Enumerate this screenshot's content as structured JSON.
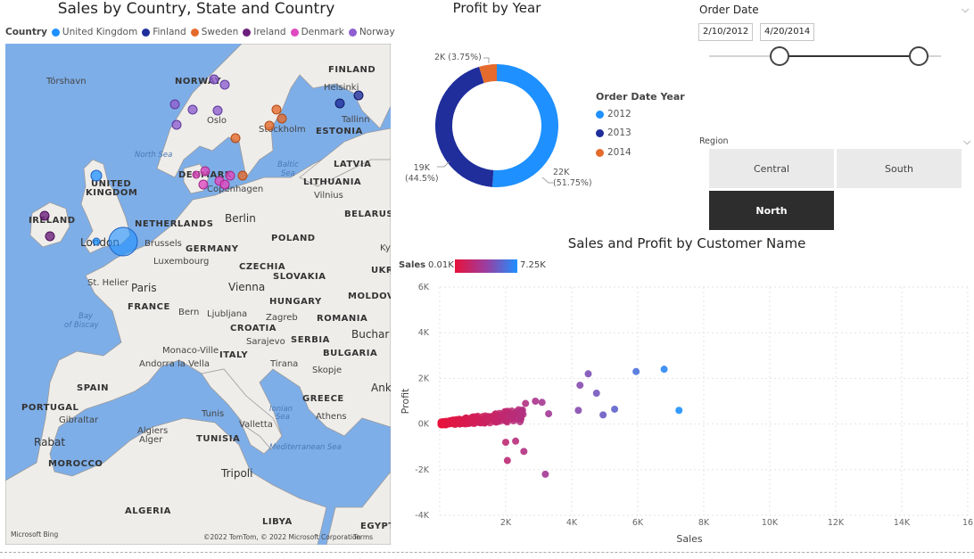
{
  "map": {
    "title": "Sales by Country, State and Country",
    "legend_label": "Country",
    "legend": [
      {
        "name": "United Kingdom",
        "color": "#1e90ff"
      },
      {
        "name": "Finland",
        "color": "#1f2e9b"
      },
      {
        "name": "Sweden",
        "color": "#e56b2c"
      },
      {
        "name": "Ireland",
        "color": "#6b1f7c"
      },
      {
        "name": "Denmark",
        "color": "#e04ac0"
      },
      {
        "name": "Norway",
        "color": "#8e5fd0"
      }
    ],
    "labels": {
      "torshavn": "Tórshavn",
      "norway": "NORWAY",
      "finland": "FINLAND",
      "helsinki": "Helsinki",
      "oslo": "Oslo",
      "tallinn": "Tallinn",
      "stockholm": "Stockholm",
      "estonia": "ESTONIA",
      "north_sea": "North Sea",
      "latvia": "LATVIA",
      "denmark": "DENMARK",
      "baltic_sea_1": "Baltic",
      "baltic_sea_2": "Sea",
      "uk_1": "UNITED",
      "uk_2": "KINGDOM",
      "lithuania": "LITHUANIA",
      "copenhagen": "Copenhagen",
      "vilnius": "Vilnius",
      "ireland": "IRELAND",
      "netherlands": "NETHERLANDS",
      "berlin": "Berlin",
      "belarus": "BELARUS",
      "london": "London",
      "brussels": "Brussels",
      "germany": "GERMANY",
      "poland": "POLAND",
      "luxembourg": "Luxembourg",
      "ky": "Ky",
      "czechia": "CZECHIA",
      "ukr": "UKR",
      "st_helier": "St. Helier",
      "paris": "Paris",
      "slovakia": "SLOVAKIA",
      "vienna": "Vienna",
      "moldova": "MOLDOVA",
      "bay_1": "Bay",
      "bay_2": "of Biscay",
      "france": "FRANCE",
      "bern": "Bern",
      "ljubljana": "Ljubljana",
      "hungary": "HUNGARY",
      "zagreb": "Zagreb",
      "romania": "ROMANIA",
      "croatia": "CROATIA",
      "buchar": "Buchar",
      "sarajevo": "Sarajevo",
      "serbia": "SERBIA",
      "monaco": "Monaco-Ville",
      "italy": "ITALY",
      "andorra": "Andorra la Vella",
      "tirana": "Tirana",
      "bulgaria": "BULGARIA",
      "skopje": "Skopje",
      "spain": "SPAIN",
      "ank": "Ank",
      "greece": "GREECE",
      "portugal": "PORTUGAL",
      "ionian_1": "Ionian",
      "ionian_2": "Sea",
      "tunis": "Tunis",
      "gibraltar": "Gibraltar",
      "valletta": "Valletta",
      "athens": "Athens",
      "rabat": "Rabat",
      "algiers_1": "Algiers",
      "algiers_2": "Alger",
      "tunisia": "TUNISIA",
      "morocco": "MOROCCO",
      "med_sea": "Mediterranean Sea",
      "tripoli": "Tripoli",
      "algeria": "ALGERIA",
      "libya": "LIBYA",
      "egypt": "EGYPT"
    },
    "credits": "©2022 TomTom, © 2022 Microsoft Corporation",
    "terms": "Terms",
    "bing": "Microsoft Bing"
  },
  "donut": {
    "title": "Profit by Year",
    "legend_title": "Order Date Year",
    "slices": [
      {
        "year": "2012",
        "value": 22000,
        "label_value": "22K",
        "label_pct": "(51.75%)",
        "color": "#1e90ff"
      },
      {
        "year": "2013",
        "value": 19000,
        "label_value": "19K",
        "label_pct": "(44.5%)",
        "color": "#1f2e9b"
      },
      {
        "year": "2014",
        "value": 2000,
        "label_value": "2K (3.75%)",
        "label_pct": "",
        "color": "#e56b2c"
      }
    ]
  },
  "date_slicer": {
    "title": "Order Date",
    "start": "2/10/2012",
    "end": "4/20/2014",
    "range_fraction": [
      0.3,
      0.9
    ]
  },
  "region_slicer": {
    "title": "Region",
    "options": [
      {
        "label": "Central",
        "selected": false
      },
      {
        "label": "South",
        "selected": false
      },
      {
        "label": "North",
        "selected": true
      }
    ]
  },
  "scatter": {
    "title": "Sales and Profit by Customer Name",
    "color_legend_label": "Sales",
    "color_min": "0.01K",
    "color_max": "7.25K"
  },
  "chart_data": {
    "type": "scatter",
    "title": "Sales and Profit by Customer Name",
    "xlabel": "Sales",
    "ylabel": "Profit",
    "xlim": [
      0,
      16000
    ],
    "ylim": [
      -4000,
      6000
    ],
    "x_ticks": [
      "",
      "2K",
      "4K",
      "6K",
      "8K",
      "10K",
      "12K",
      "14K",
      "16"
    ],
    "y_ticks": [
      "-4K",
      "-2K",
      "0K",
      "2K",
      "4K",
      "6K"
    ],
    "color_by": "Sales",
    "color_range": [
      10,
      7250
    ],
    "outliers": [
      {
        "x": 7250,
        "y": 600
      },
      {
        "x": 6800,
        "y": 2400
      },
      {
        "x": 5950,
        "y": 2300
      },
      {
        "x": 5300,
        "y": 650
      },
      {
        "x": 4950,
        "y": 400
      },
      {
        "x": 4750,
        "y": 1350
      },
      {
        "x": 4500,
        "y": 2200
      },
      {
        "x": 4250,
        "y": 1700
      },
      {
        "x": 4200,
        "y": 600
      },
      {
        "x": 3300,
        "y": 450
      },
      {
        "x": 3200,
        "y": -2200
      },
      {
        "x": 2550,
        "y": -1200
      },
      {
        "x": 2050,
        "y": -1600
      },
      {
        "x": 3100,
        "y": 950
      },
      {
        "x": 2900,
        "y": 1000
      },
      {
        "x": 2600,
        "y": 900
      },
      {
        "x": 2300,
        "y": -750
      },
      {
        "x": 2000,
        "y": -800
      }
    ]
  }
}
